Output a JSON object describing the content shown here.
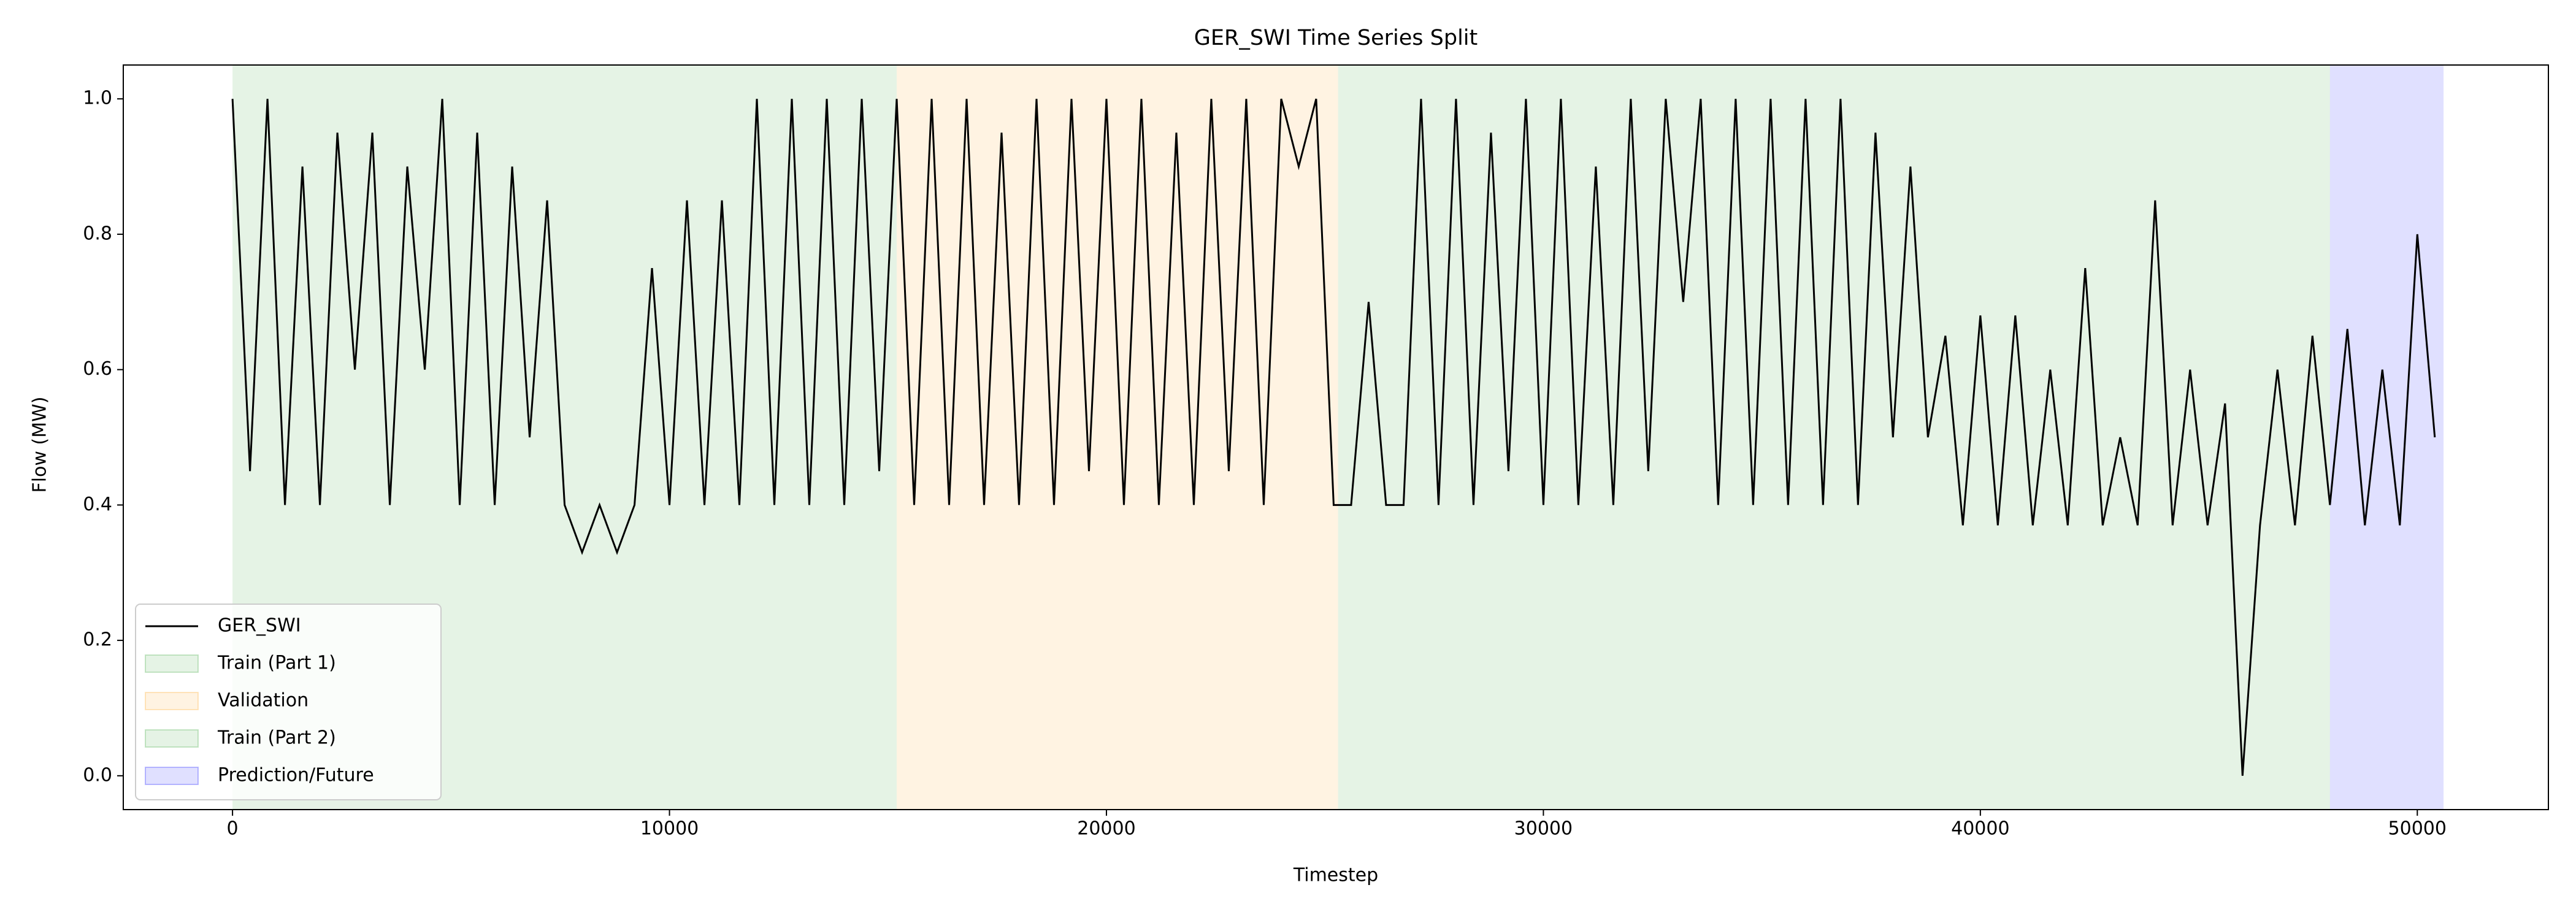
{
  "chart_data": {
    "type": "line",
    "title": "GER_SWI Time Series Split",
    "x_label": "Timestep",
    "y_label": "Flow (MW)",
    "xlim": [
      -2500,
      53000
    ],
    "ylim": [
      -0.05,
      1.05
    ],
    "xticks": [
      0,
      10000,
      20000,
      30000,
      40000,
      50000
    ],
    "yticks": [
      {
        "value": 0,
        "label": "0.0"
      },
      0.2,
      0.4,
      0.6,
      0.8,
      {
        "value": 1,
        "label": "1.0"
      }
    ],
    "legend": "lower left",
    "region_alpha": 0.12,
    "regions": [
      {
        "name": "Train (Part 1)",
        "start": 0,
        "end": 15200,
        "color": "#2ca02c"
      },
      {
        "name": "Validation",
        "start": 15200,
        "end": 25300,
        "color": "#ff9f0e"
      },
      {
        "name": "Train (Part 2)",
        "start": 25300,
        "end": 48000,
        "color": "#2ca02c"
      },
      {
        "name": "Prediction/Future",
        "start": 48000,
        "end": 50600,
        "color": "#0000ff"
      }
    ],
    "x": [
      0,
      400,
      800,
      1200,
      1600,
      2000,
      2400,
      2800,
      3200,
      3600,
      4000,
      4400,
      4800,
      5200,
      5600,
      6000,
      6400,
      6800,
      7200,
      7600,
      8000,
      8400,
      8800,
      9200,
      9600,
      10000,
      10400,
      10800,
      11200,
      11600,
      12000,
      12400,
      12800,
      13200,
      13600,
      14000,
      14400,
      14800,
      15200,
      15600,
      16000,
      16400,
      16800,
      17200,
      17600,
      18000,
      18400,
      18800,
      19200,
      19600,
      20000,
      20400,
      20800,
      21200,
      21600,
      22000,
      22400,
      22800,
      23200,
      23600,
      24000,
      24400,
      24800,
      25200,
      25600,
      26000,
      26400,
      26800,
      27200,
      27600,
      28000,
      28400,
      28800,
      29200,
      29600,
      30000,
      30400,
      30800,
      31200,
      31600,
      32000,
      32400,
      32800,
      33200,
      33600,
      34000,
      34400,
      34800,
      35200,
      35600,
      36000,
      36400,
      36800,
      37200,
      37600,
      38000,
      38400,
      38800,
      39200,
      39600,
      40000,
      40400,
      40800,
      41200,
      41600,
      42000,
      42400,
      42800,
      43200,
      43600,
      44000,
      44400,
      44800,
      45200,
      45600,
      46000,
      46400,
      46800,
      47200,
      47600,
      48000,
      48400,
      48800,
      49200,
      49600,
      50000,
      50400
    ],
    "series": [
      {
        "name": "GER_SWI",
        "color": "#000000",
        "values": [
          1.0,
          0.45,
          1.0,
          0.4,
          0.9,
          0.4,
          0.95,
          0.6,
          0.95,
          0.4,
          0.9,
          0.6,
          1.0,
          0.4,
          0.95,
          0.4,
          0.9,
          0.5,
          0.85,
          0.4,
          0.33,
          0.4,
          0.33,
          0.4,
          0.75,
          0.4,
          0.85,
          0.4,
          0.85,
          0.4,
          1.0,
          0.4,
          1.0,
          0.4,
          1.0,
          0.4,
          1.0,
          0.45,
          1.0,
          0.4,
          1.0,
          0.4,
          1.0,
          0.4,
          0.95,
          0.4,
          1.0,
          0.4,
          1.0,
          0.45,
          1.0,
          0.4,
          1.0,
          0.4,
          0.95,
          0.4,
          1.0,
          0.45,
          1.0,
          0.4,
          1.0,
          0.9,
          1.0,
          0.4,
          0.4,
          0.7,
          0.4,
          0.4,
          1.0,
          0.4,
          1.0,
          0.4,
          0.95,
          0.45,
          1.0,
          0.4,
          1.0,
          0.4,
          0.9,
          0.4,
          1.0,
          0.45,
          1.0,
          0.7,
          1.0,
          0.4,
          1.0,
          0.4,
          1.0,
          0.4,
          1.0,
          0.4,
          1.0,
          0.4,
          0.95,
          0.5,
          0.9,
          0.5,
          0.65,
          0.37,
          0.68,
          0.37,
          0.68,
          0.37,
          0.6,
          0.37,
          0.75,
          0.37,
          0.5,
          0.37,
          0.85,
          0.37,
          0.6,
          0.37,
          0.55,
          0.0,
          0.37,
          0.6,
          0.37,
          0.65,
          0.4,
          0.66,
          0.37,
          0.6,
          0.37,
          0.8,
          0.5
        ]
      }
    ]
  }
}
